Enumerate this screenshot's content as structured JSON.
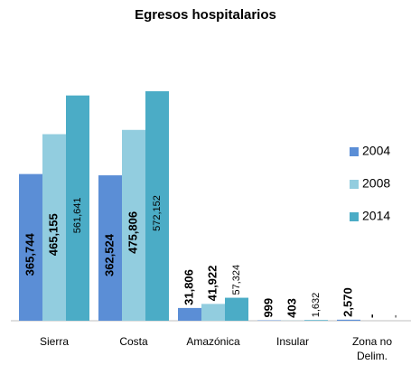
{
  "chart_data": {
    "type": "bar",
    "title": "Egresos hospitalarios",
    "categories": [
      "Sierra",
      "Costa",
      "Amazónica",
      "Insular",
      "Zona no Delim."
    ],
    "series": [
      {
        "name": "2004",
        "color": "#5b8ed6",
        "values": [
          365744,
          362524,
          31806,
          999,
          2570
        ],
        "value_labels": [
          "365,744",
          "362,524",
          "31,806",
          "999",
          "2,570"
        ]
      },
      {
        "name": "2008",
        "color": "#92cddf",
        "values": [
          465155,
          475806,
          41922,
          403,
          null
        ],
        "value_labels": [
          "465,155",
          "475,806",
          "41,922",
          "403",
          "-"
        ]
      },
      {
        "name": "2014",
        "color": "#4bacc6",
        "values": [
          561641,
          572152,
          57324,
          1632,
          null
        ],
        "value_labels": [
          "561,641",
          "572,152",
          "57,324",
          "1,632",
          "-"
        ]
      }
    ],
    "legend": "right"
  }
}
